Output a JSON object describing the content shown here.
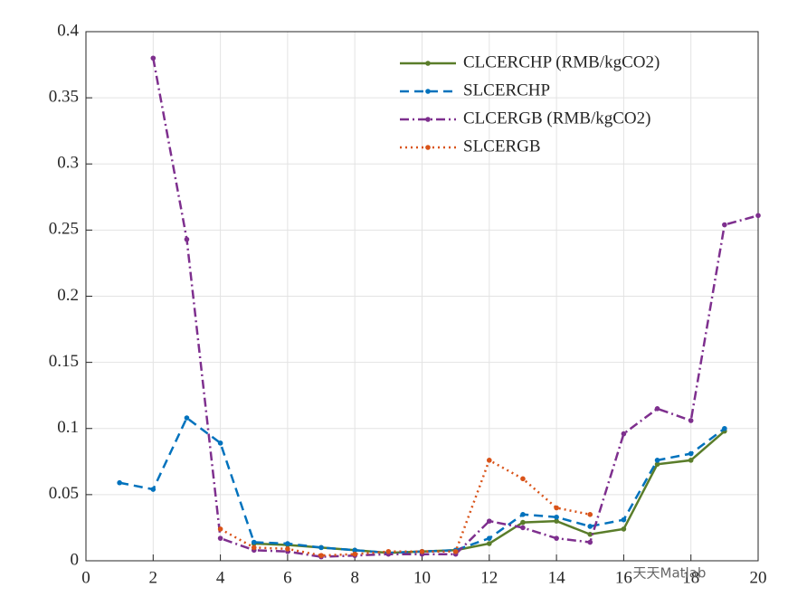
{
  "chart_data": {
    "type": "line",
    "x": [
      1,
      2,
      3,
      4,
      5,
      6,
      7,
      8,
      9,
      10,
      11,
      12,
      13,
      14,
      15,
      16,
      17,
      18,
      19,
      20
    ],
    "series": [
      {
        "name": "CLCERCHP (RMB/kgCO2)",
        "color": "#5a7d2a",
        "style": "solid",
        "values": [
          null,
          null,
          null,
          null,
          0.013,
          0.012,
          0.01,
          0.008,
          0.006,
          0.007,
          0.008,
          0.013,
          0.029,
          0.03,
          0.02,
          0.024,
          0.073,
          0.076,
          0.098,
          null
        ]
      },
      {
        "name": "SLCERCHP",
        "color": "#0072bd",
        "style": "dashed",
        "values": [
          0.059,
          0.054,
          0.108,
          0.089,
          0.014,
          0.013,
          0.01,
          0.008,
          0.006,
          0.007,
          0.008,
          0.017,
          0.035,
          0.033,
          0.026,
          0.031,
          0.076,
          0.081,
          0.1,
          null
        ]
      },
      {
        "name": "CLCERGB (RMB/kgCO2)",
        "color": "#7e2f8e",
        "style": "dashdot",
        "values": [
          null,
          0.38,
          0.243,
          0.017,
          0.008,
          0.007,
          0.003,
          0.004,
          0.005,
          0.005,
          0.005,
          0.03,
          0.025,
          0.017,
          0.014,
          0.096,
          0.115,
          0.106,
          0.254,
          0.261
        ]
      },
      {
        "name": "SLCERGB",
        "color": "#d95319",
        "style": "dotted",
        "values": [
          null,
          null,
          null,
          0.024,
          0.01,
          0.009,
          0.004,
          0.005,
          0.007,
          0.007,
          0.007,
          0.076,
          0.062,
          0.04,
          0.035,
          null,
          null,
          null,
          null,
          null
        ]
      }
    ],
    "xlim": [
      0,
      20
    ],
    "xticks": [
      0,
      2,
      4,
      6,
      8,
      10,
      12,
      14,
      16,
      18,
      20
    ],
    "ylim": [
      0,
      0.4
    ],
    "yticks": [
      0,
      0.05,
      0.1,
      0.15,
      0.2,
      0.25,
      0.3,
      0.35,
      0.4
    ],
    "grid": true,
    "legend": "upper right"
  },
  "watermark": "天天Matlab"
}
